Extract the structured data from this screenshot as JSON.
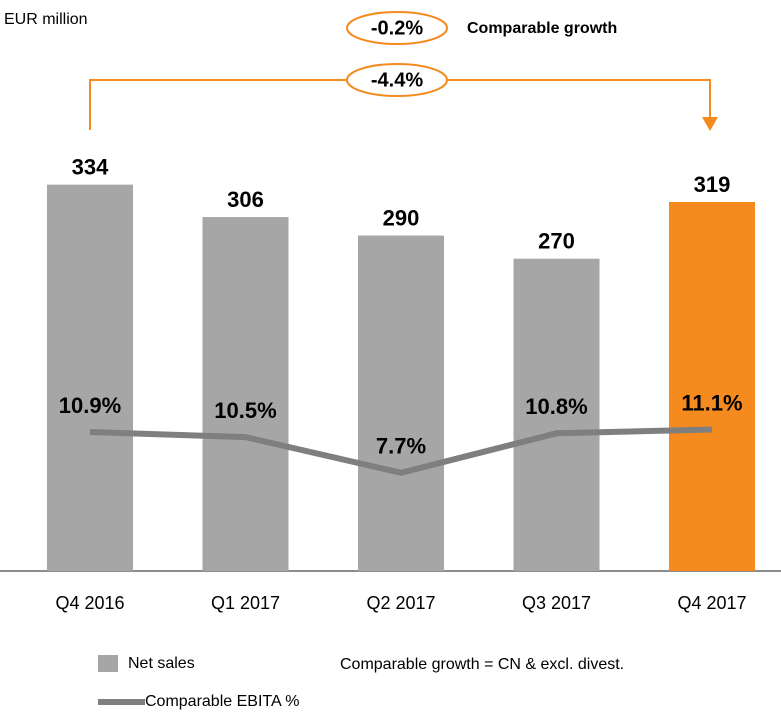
{
  "chart_data": {
    "type": "bar",
    "unit_label": "EUR million",
    "categories": [
      "Q4 2016",
      "Q1 2017",
      "Q2 2017",
      "Q3 2017",
      "Q4 2017"
    ],
    "series": [
      {
        "name": "Net sales",
        "type": "bar",
        "color": "#a6a6a6",
        "colors": [
          "#a6a6a6",
          "#a6a6a6",
          "#a6a6a6",
          "#a6a6a6",
          "#f58a1f"
        ],
        "values": [
          334,
          306,
          290,
          270,
          319
        ]
      },
      {
        "name": "Comparable EBITA %",
        "type": "line",
        "color": "#7f7f7f",
        "axis": "y2",
        "values": [
          10.9,
          10.5,
          7.7,
          10.8,
          11.1
        ],
        "value_labels": [
          "10.9%",
          "10.5%",
          "7.7%",
          "10.8%",
          "11.1%"
        ]
      }
    ],
    "ylim": [
      0,
      485
    ],
    "y2lim": [
      0,
      44
    ],
    "annotations": [
      "-0.2%",
      "Comparable growth",
      "-4.4%",
      "Comparable growth = CN & excl. divest."
    ],
    "annotation_color": "#f58a1f"
  }
}
